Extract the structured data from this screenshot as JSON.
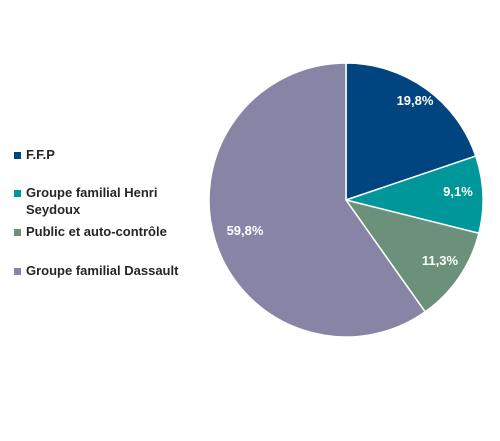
{
  "chart_data": {
    "type": "pie",
    "title": "",
    "legend_position": "left",
    "slices": [
      {
        "label": "F.F.P",
        "value": 19.8,
        "display": "19,8%",
        "color": "#00457f"
      },
      {
        "label": "Groupe familial Henri Seydoux",
        "value": 9.1,
        "display": "9,1%",
        "color": "#00979a"
      },
      {
        "label": "Public et auto-contrôle",
        "value": 11.3,
        "display": "11,3%",
        "color": "#6c917a"
      },
      {
        "label": "Groupe familial Dassault",
        "value": 59.8,
        "display": "59,8%",
        "color": "#8884a6"
      }
    ]
  }
}
